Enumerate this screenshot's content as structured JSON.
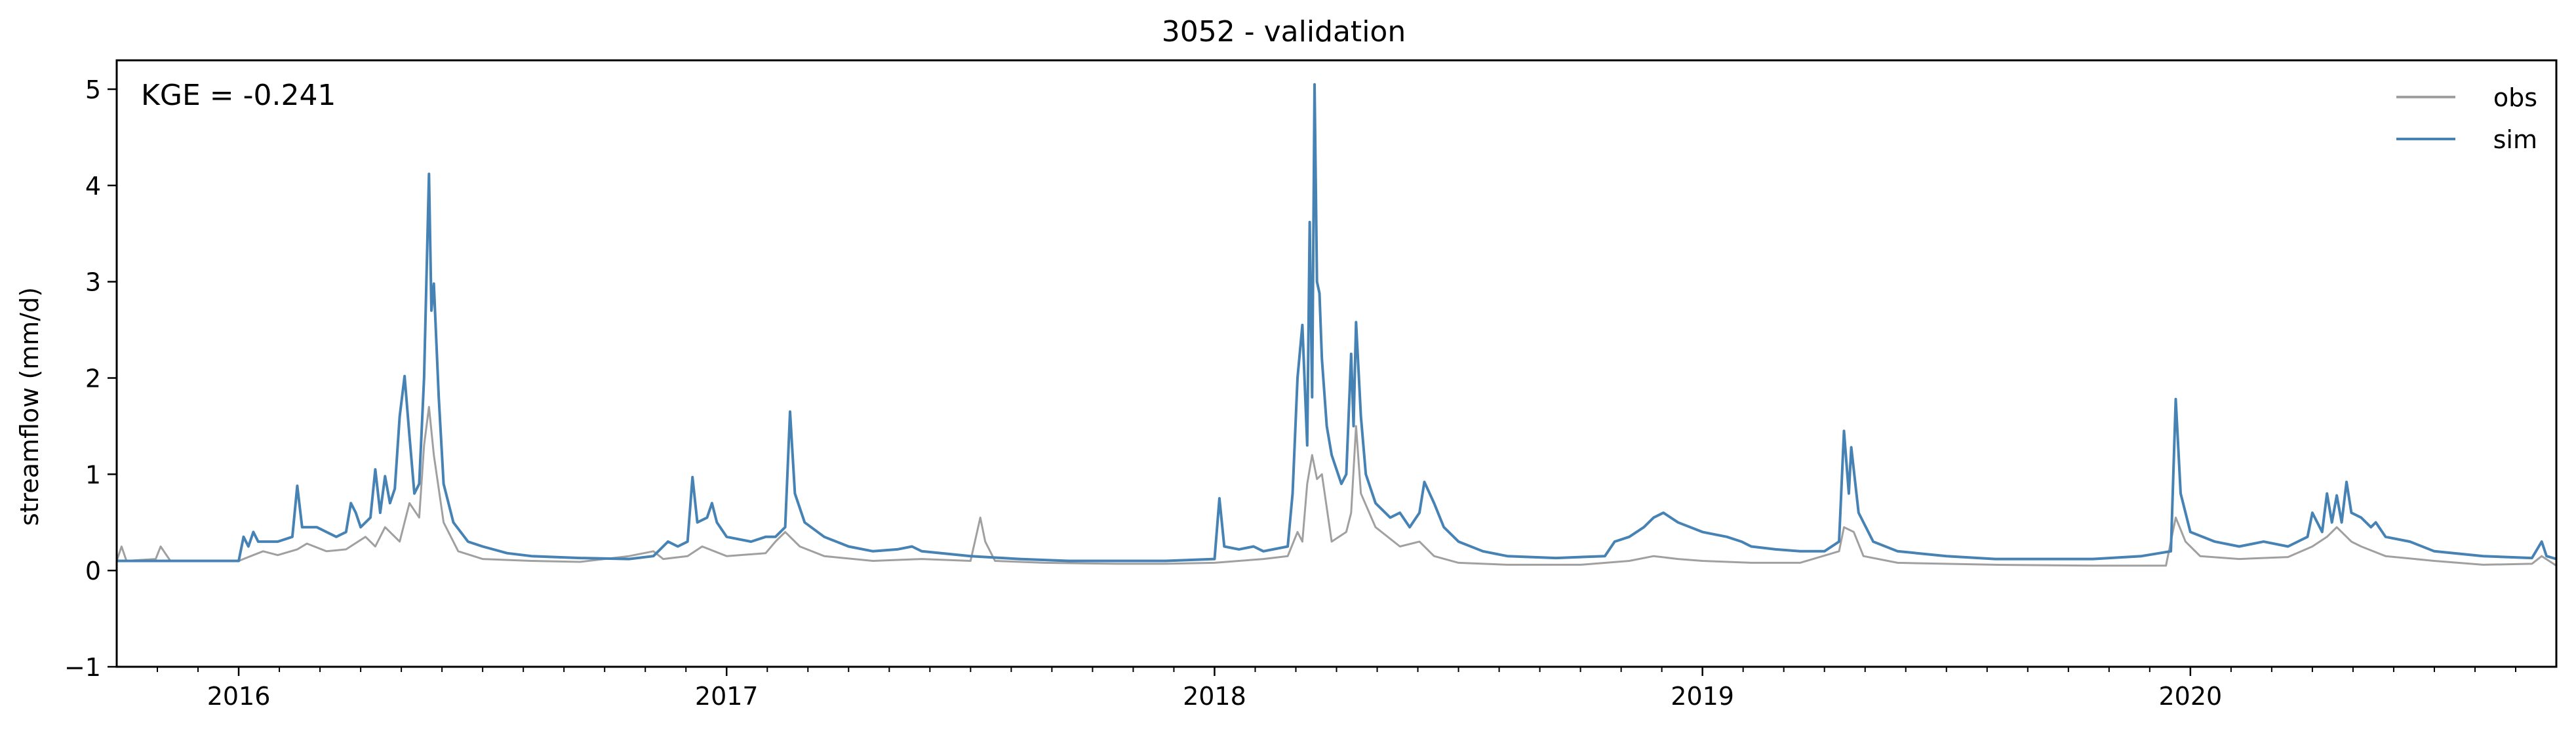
{
  "chart_data": {
    "type": "line",
    "title": "3052 - validation",
    "xlabel": "",
    "ylabel": "streamflow (mm/d)",
    "annotation": "KGE = -0.241",
    "legend_position": "top-right",
    "ylim": [
      -1,
      5.3
    ],
    "xlim": [
      2015.75,
      2020.75
    ],
    "yticks": [
      -1,
      0,
      1,
      2,
      3,
      4,
      5
    ],
    "ytick_labels": [
      "−1",
      "0",
      "1",
      "2",
      "3",
      "4",
      "5"
    ],
    "xticks": [
      2016,
      2017,
      2018,
      2019,
      2020
    ],
    "xtick_labels": [
      "2016",
      "2017",
      "2018",
      "2019",
      "2020"
    ],
    "grid": false,
    "series": [
      {
        "name": "obs",
        "color": "#a0a0a0",
        "points": [
          [
            2015.75,
            0.1
          ],
          [
            2015.76,
            0.25
          ],
          [
            2015.77,
            0.1
          ],
          [
            2015.83,
            0.12
          ],
          [
            2015.84,
            0.25
          ],
          [
            2015.86,
            0.1
          ],
          [
            2015.92,
            0.1
          ],
          [
            2016.0,
            0.1
          ],
          [
            2016.02,
            0.14
          ],
          [
            2016.05,
            0.2
          ],
          [
            2016.08,
            0.16
          ],
          [
            2016.12,
            0.22
          ],
          [
            2016.14,
            0.28
          ],
          [
            2016.18,
            0.2
          ],
          [
            2016.22,
            0.22
          ],
          [
            2016.26,
            0.35
          ],
          [
            2016.28,
            0.25
          ],
          [
            2016.3,
            0.45
          ],
          [
            2016.33,
            0.3
          ],
          [
            2016.35,
            0.7
          ],
          [
            2016.37,
            0.55
          ],
          [
            2016.38,
            1.3
          ],
          [
            2016.39,
            1.7
          ],
          [
            2016.4,
            1.2
          ],
          [
            2016.42,
            0.5
          ],
          [
            2016.45,
            0.2
          ],
          [
            2016.5,
            0.12
          ],
          [
            2016.6,
            0.1
          ],
          [
            2016.7,
            0.09
          ],
          [
            2016.8,
            0.15
          ],
          [
            2016.85,
            0.2
          ],
          [
            2016.87,
            0.12
          ],
          [
            2016.92,
            0.15
          ],
          [
            2016.95,
            0.25
          ],
          [
            2017.0,
            0.15
          ],
          [
            2017.08,
            0.18
          ],
          [
            2017.1,
            0.3
          ],
          [
            2017.12,
            0.4
          ],
          [
            2017.15,
            0.25
          ],
          [
            2017.2,
            0.15
          ],
          [
            2017.3,
            0.1
          ],
          [
            2017.4,
            0.12
          ],
          [
            2017.5,
            0.1
          ],
          [
            2017.52,
            0.55
          ],
          [
            2017.53,
            0.3
          ],
          [
            2017.55,
            0.1
          ],
          [
            2017.65,
            0.08
          ],
          [
            2017.8,
            0.07
          ],
          [
            2017.9,
            0.07
          ],
          [
            2018.0,
            0.08
          ],
          [
            2018.05,
            0.1
          ],
          [
            2018.1,
            0.12
          ],
          [
            2018.15,
            0.15
          ],
          [
            2018.17,
            0.4
          ],
          [
            2018.18,
            0.3
          ],
          [
            2018.19,
            0.9
          ],
          [
            2018.2,
            1.2
          ],
          [
            2018.21,
            0.95
          ],
          [
            2018.22,
            1.0
          ],
          [
            2018.24,
            0.3
          ],
          [
            2018.27,
            0.4
          ],
          [
            2018.28,
            0.6
          ],
          [
            2018.29,
            1.5
          ],
          [
            2018.3,
            0.8
          ],
          [
            2018.33,
            0.45
          ],
          [
            2018.38,
            0.25
          ],
          [
            2018.42,
            0.3
          ],
          [
            2018.45,
            0.15
          ],
          [
            2018.5,
            0.08
          ],
          [
            2018.6,
            0.06
          ],
          [
            2018.75,
            0.06
          ],
          [
            2018.85,
            0.1
          ],
          [
            2018.9,
            0.15
          ],
          [
            2018.95,
            0.12
          ],
          [
            2019.0,
            0.1
          ],
          [
            2019.1,
            0.08
          ],
          [
            2019.2,
            0.08
          ],
          [
            2019.28,
            0.2
          ],
          [
            2019.29,
            0.45
          ],
          [
            2019.31,
            0.4
          ],
          [
            2019.33,
            0.15
          ],
          [
            2019.4,
            0.08
          ],
          [
            2019.6,
            0.06
          ],
          [
            2019.8,
            0.05
          ],
          [
            2019.95,
            0.05
          ],
          [
            2019.97,
            0.55
          ],
          [
            2019.99,
            0.3
          ],
          [
            2020.02,
            0.15
          ],
          [
            2020.1,
            0.12
          ],
          [
            2020.2,
            0.14
          ],
          [
            2020.25,
            0.25
          ],
          [
            2020.28,
            0.35
          ],
          [
            2020.3,
            0.45
          ],
          [
            2020.33,
            0.3
          ],
          [
            2020.35,
            0.25
          ],
          [
            2020.4,
            0.15
          ],
          [
            2020.5,
            0.1
          ],
          [
            2020.6,
            0.06
          ],
          [
            2020.7,
            0.07
          ],
          [
            2020.72,
            0.15
          ],
          [
            2020.75,
            0.05
          ]
        ]
      },
      {
        "name": "sim",
        "color": "#4682b4",
        "points": [
          [
            2015.75,
            0.1
          ],
          [
            2015.8,
            0.1
          ],
          [
            2015.9,
            0.1
          ],
          [
            2016.0,
            0.1
          ],
          [
            2016.01,
            0.35
          ],
          [
            2016.02,
            0.25
          ],
          [
            2016.03,
            0.4
          ],
          [
            2016.04,
            0.3
          ],
          [
            2016.08,
            0.3
          ],
          [
            2016.11,
            0.35
          ],
          [
            2016.12,
            0.88
          ],
          [
            2016.13,
            0.45
          ],
          [
            2016.16,
            0.45
          ],
          [
            2016.2,
            0.35
          ],
          [
            2016.22,
            0.4
          ],
          [
            2016.23,
            0.7
          ],
          [
            2016.24,
            0.6
          ],
          [
            2016.25,
            0.45
          ],
          [
            2016.27,
            0.55
          ],
          [
            2016.28,
            1.05
          ],
          [
            2016.29,
            0.6
          ],
          [
            2016.3,
            0.98
          ],
          [
            2016.31,
            0.7
          ],
          [
            2016.32,
            0.85
          ],
          [
            2016.33,
            1.6
          ],
          [
            2016.34,
            2.02
          ],
          [
            2016.35,
            1.4
          ],
          [
            2016.36,
            0.8
          ],
          [
            2016.37,
            0.9
          ],
          [
            2016.38,
            2.0
          ],
          [
            2016.39,
            4.12
          ],
          [
            2016.395,
            2.7
          ],
          [
            2016.4,
            2.98
          ],
          [
            2016.41,
            1.8
          ],
          [
            2016.42,
            0.9
          ],
          [
            2016.44,
            0.5
          ],
          [
            2016.47,
            0.3
          ],
          [
            2016.5,
            0.25
          ],
          [
            2016.55,
            0.18
          ],
          [
            2016.6,
            0.15
          ],
          [
            2016.7,
            0.13
          ],
          [
            2016.8,
            0.12
          ],
          [
            2016.85,
            0.15
          ],
          [
            2016.88,
            0.3
          ],
          [
            2016.9,
            0.25
          ],
          [
            2016.92,
            0.3
          ],
          [
            2016.93,
            0.97
          ],
          [
            2016.94,
            0.5
          ],
          [
            2016.96,
            0.55
          ],
          [
            2016.97,
            0.7
          ],
          [
            2016.98,
            0.5
          ],
          [
            2017.0,
            0.35
          ],
          [
            2017.05,
            0.3
          ],
          [
            2017.08,
            0.35
          ],
          [
            2017.1,
            0.35
          ],
          [
            2017.12,
            0.45
          ],
          [
            2017.13,
            1.65
          ],
          [
            2017.14,
            0.8
          ],
          [
            2017.16,
            0.5
          ],
          [
            2017.2,
            0.35
          ],
          [
            2017.25,
            0.25
          ],
          [
            2017.3,
            0.2
          ],
          [
            2017.35,
            0.22
          ],
          [
            2017.38,
            0.25
          ],
          [
            2017.4,
            0.2
          ],
          [
            2017.5,
            0.15
          ],
          [
            2017.6,
            0.12
          ],
          [
            2017.7,
            0.1
          ],
          [
            2017.8,
            0.1
          ],
          [
            2017.9,
            0.1
          ],
          [
            2018.0,
            0.12
          ],
          [
            2018.01,
            0.75
          ],
          [
            2018.02,
            0.25
          ],
          [
            2018.05,
            0.22
          ],
          [
            2018.08,
            0.25
          ],
          [
            2018.1,
            0.2
          ],
          [
            2018.15,
            0.25
          ],
          [
            2018.16,
            0.8
          ],
          [
            2018.17,
            2.0
          ],
          [
            2018.18,
            2.55
          ],
          [
            2018.19,
            1.3
          ],
          [
            2018.195,
            3.62
          ],
          [
            2018.2,
            1.8
          ],
          [
            2018.205,
            5.05
          ],
          [
            2018.21,
            3.0
          ],
          [
            2018.215,
            2.88
          ],
          [
            2018.22,
            2.2
          ],
          [
            2018.23,
            1.5
          ],
          [
            2018.24,
            1.2
          ],
          [
            2018.26,
            0.9
          ],
          [
            2018.27,
            1.0
          ],
          [
            2018.28,
            2.25
          ],
          [
            2018.285,
            1.5
          ],
          [
            2018.29,
            2.58
          ],
          [
            2018.3,
            1.6
          ],
          [
            2018.31,
            1.0
          ],
          [
            2018.33,
            0.7
          ],
          [
            2018.36,
            0.55
          ],
          [
            2018.38,
            0.6
          ],
          [
            2018.4,
            0.45
          ],
          [
            2018.42,
            0.6
          ],
          [
            2018.43,
            0.92
          ],
          [
            2018.45,
            0.7
          ],
          [
            2018.47,
            0.45
          ],
          [
            2018.5,
            0.3
          ],
          [
            2018.55,
            0.2
          ],
          [
            2018.6,
            0.15
          ],
          [
            2018.7,
            0.13
          ],
          [
            2018.8,
            0.15
          ],
          [
            2018.82,
            0.3
          ],
          [
            2018.85,
            0.35
          ],
          [
            2018.88,
            0.45
          ],
          [
            2018.9,
            0.55
          ],
          [
            2018.92,
            0.6
          ],
          [
            2018.95,
            0.5
          ],
          [
            2019.0,
            0.4
          ],
          [
            2019.05,
            0.35
          ],
          [
            2019.08,
            0.3
          ],
          [
            2019.1,
            0.25
          ],
          [
            2019.15,
            0.22
          ],
          [
            2019.2,
            0.2
          ],
          [
            2019.25,
            0.2
          ],
          [
            2019.28,
            0.3
          ],
          [
            2019.29,
            1.45
          ],
          [
            2019.3,
            0.8
          ],
          [
            2019.305,
            1.28
          ],
          [
            2019.32,
            0.6
          ],
          [
            2019.35,
            0.3
          ],
          [
            2019.4,
            0.2
          ],
          [
            2019.5,
            0.15
          ],
          [
            2019.6,
            0.12
          ],
          [
            2019.7,
            0.12
          ],
          [
            2019.8,
            0.12
          ],
          [
            2019.9,
            0.15
          ],
          [
            2019.96,
            0.2
          ],
          [
            2019.97,
            1.78
          ],
          [
            2019.98,
            0.8
          ],
          [
            2020.0,
            0.4
          ],
          [
            2020.05,
            0.3
          ],
          [
            2020.1,
            0.25
          ],
          [
            2020.15,
            0.3
          ],
          [
            2020.2,
            0.25
          ],
          [
            2020.24,
            0.35
          ],
          [
            2020.25,
            0.6
          ],
          [
            2020.27,
            0.4
          ],
          [
            2020.28,
            0.8
          ],
          [
            2020.29,
            0.5
          ],
          [
            2020.3,
            0.78
          ],
          [
            2020.31,
            0.5
          ],
          [
            2020.32,
            0.92
          ],
          [
            2020.33,
            0.6
          ],
          [
            2020.35,
            0.55
          ],
          [
            2020.37,
            0.45
          ],
          [
            2020.38,
            0.5
          ],
          [
            2020.4,
            0.35
          ],
          [
            2020.45,
            0.3
          ],
          [
            2020.5,
            0.2
          ],
          [
            2020.6,
            0.15
          ],
          [
            2020.7,
            0.13
          ],
          [
            2020.72,
            0.3
          ],
          [
            2020.73,
            0.15
          ],
          [
            2020.75,
            0.12
          ]
        ]
      }
    ]
  }
}
